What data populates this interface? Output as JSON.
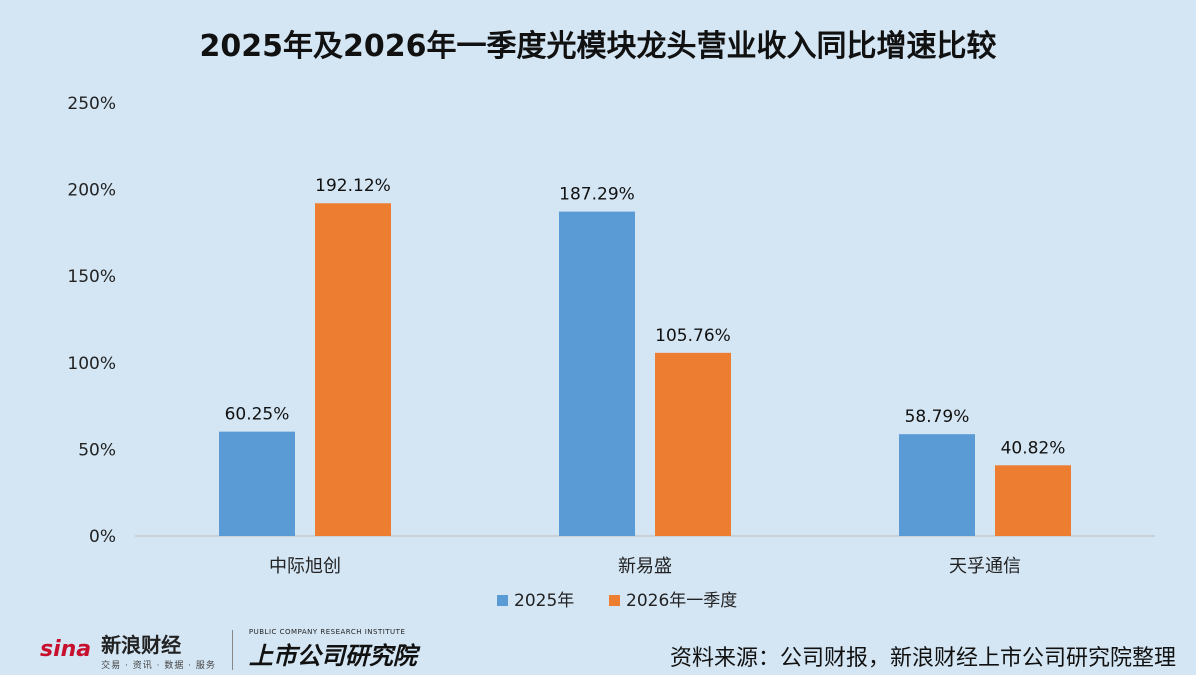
{
  "chart_data": {
    "type": "bar",
    "title": "2025年及2026年一季度光模块龙头营业收入同比增速比较",
    "categories": [
      "中际旭创",
      "新易盛",
      "天孚通信"
    ],
    "series": [
      {
        "name": "2025年",
        "values": [
          60.25,
          187.29,
          58.79
        ],
        "labels": [
          "60.25%",
          "187.29%",
          "58.79%"
        ],
        "color": "#5b9bd5"
      },
      {
        "name": "2026年一季度",
        "values": [
          192.12,
          105.76,
          40.82
        ],
        "labels": [
          "192.12%",
          "105.76%",
          "40.82%"
        ],
        "color": "#ed7d31"
      }
    ],
    "yticks": [
      "0%",
      "50%",
      "100%",
      "150%",
      "200%",
      "250%"
    ],
    "ylim": [
      0,
      250
    ],
    "legend_position": "bottom",
    "grid": false
  },
  "footer": {
    "sina_logo": "sina",
    "sina_name": "新浪财经",
    "sina_sub": "交易 · 资讯 · 数据 · 服务",
    "institute_en": "PUBLIC COMPANY RESEARCH INSTITUTE",
    "institute_cn": "上市公司研究院",
    "source": "资料来源：公司财报，新浪财经上市公司研究院整理"
  }
}
